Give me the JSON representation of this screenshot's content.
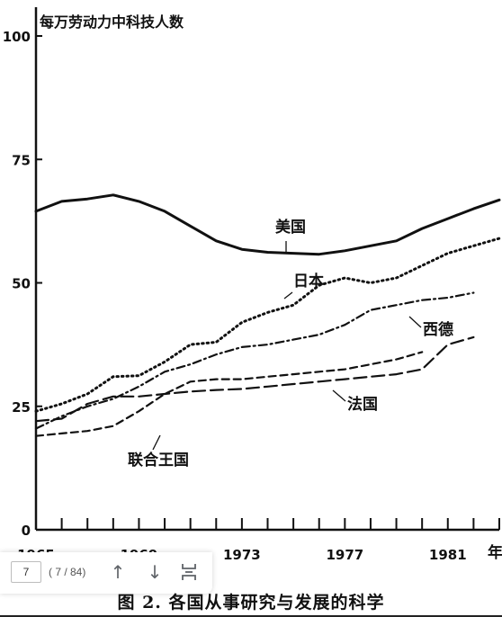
{
  "chart_data": {
    "type": "line",
    "ylabel": "每万劳动力中科技人数",
    "xlabel": "年",
    "ylim": [
      0,
      100
    ],
    "xlim": [
      1965,
      1983
    ],
    "yticks": [
      {
        "v": 0,
        "label": "0"
      },
      {
        "v": 25,
        "label": "25"
      },
      {
        "v": 50,
        "label": "50"
      },
      {
        "v": 75,
        "label": "75"
      },
      {
        "v": 100,
        "label": "100"
      }
    ],
    "xticks": [
      {
        "v": 1965,
        "label": "1965"
      },
      {
        "v": 1969,
        "label": "1969"
      },
      {
        "v": 1973,
        "label": "1973"
      },
      {
        "v": 1977,
        "label": "1977"
      },
      {
        "v": 1981,
        "label": "1981"
      }
    ],
    "series": [
      {
        "name": "美国",
        "style": "solid",
        "x": [
          1965,
          1966,
          1967,
          1968,
          1969,
          1970,
          1971,
          1972,
          1973,
          1974,
          1975,
          1976,
          1977,
          1978,
          1979,
          1980,
          1981,
          1982,
          1983
        ],
        "y": [
          64.5,
          66.5,
          67.0,
          67.8,
          66.5,
          64.5,
          61.5,
          58.5,
          56.8,
          56.2,
          56.0,
          55.8,
          56.5,
          57.5,
          58.5,
          61.0,
          63.0,
          65.0,
          66.8
        ]
      },
      {
        "name": "日本",
        "style": "dotted",
        "x": [
          1965,
          1966,
          1967,
          1968,
          1969,
          1970,
          1971,
          1972,
          1973,
          1974,
          1975,
          1976,
          1977,
          1978,
          1979,
          1980,
          1981,
          1982,
          1983
        ],
        "y": [
          24.0,
          25.5,
          27.5,
          31.0,
          31.2,
          34.0,
          37.5,
          38.0,
          42.0,
          44.0,
          45.5,
          49.5,
          51.0,
          50.0,
          51.0,
          53.5,
          56.0,
          57.5,
          59.0
        ]
      },
      {
        "name": "西德",
        "style": "dashdot",
        "x": [
          1965,
          1966,
          1967,
          1968,
          1969,
          1970,
          1971,
          1972,
          1973,
          1974,
          1975,
          1976,
          1977,
          1978,
          1979,
          1980,
          1981,
          1982
        ],
        "y": [
          20.5,
          23.0,
          25.0,
          26.5,
          29.0,
          32.0,
          33.5,
          35.5,
          37.0,
          37.5,
          38.5,
          39.5,
          41.5,
          44.5,
          45.5,
          46.5,
          47.0,
          48.0
        ]
      },
      {
        "name": "法国",
        "style": "longdash",
        "x": [
          1965,
          1966,
          1967,
          1968,
          1969,
          1970,
          1971,
          1972,
          1973,
          1974,
          1975,
          1976,
          1977,
          1978,
          1979,
          1980,
          1981,
          1982
        ],
        "y": [
          22.0,
          22.5,
          25.5,
          27.0,
          27.0,
          27.5,
          28.0,
          28.3,
          28.5,
          29.0,
          29.5,
          30.0,
          30.5,
          31.0,
          31.5,
          32.5,
          37.5,
          39.0
        ]
      },
      {
        "name": "联合王国",
        "style": "shortdash",
        "x": [
          1965,
          1966,
          1967,
          1968,
          1969,
          1970,
          1971,
          1972,
          1973,
          1974,
          1975,
          1976,
          1977,
          1978,
          1979,
          1980
        ],
        "y": [
          19.0,
          19.5,
          20.0,
          21.0,
          24.0,
          27.5,
          30.0,
          30.5,
          30.5,
          31.0,
          31.5,
          32.0,
          32.5,
          33.5,
          34.5,
          36.0
        ]
      }
    ]
  },
  "viewer": {
    "page_input": "7",
    "page_count": "( 7 / 84)"
  },
  "caption": "图 2. 各国从事研究与发展的科学"
}
